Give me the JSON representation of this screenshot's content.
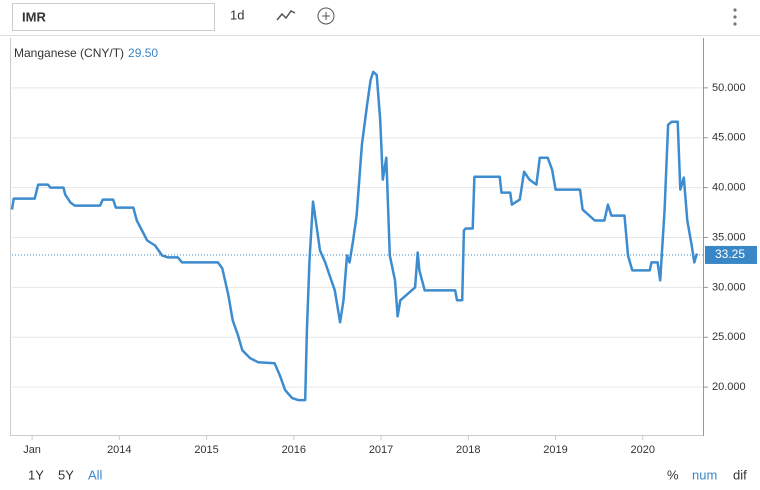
{
  "ui": {
    "symbol": "IMR",
    "interval": "1d",
    "ranges": [
      "1Y",
      "5Y",
      "All"
    ],
    "modes": [
      "%",
      "num",
      "dif"
    ]
  },
  "chart_data": {
    "type": "line",
    "title": "Manganese (CNY/T)",
    "title_value": "29.50",
    "color": "#3d8ccf",
    "grid": true,
    "last_value": 33.25,
    "xlim": [
      2012.77,
      2020.69
    ],
    "xticks": [
      {
        "value": 2013,
        "label": "Jan"
      },
      2014,
      2015,
      2016,
      2017,
      2018,
      2019,
      2020
    ],
    "ylim": [
      15.2,
      55
    ],
    "yticks": [
      {
        "value": 20,
        "label": "20.000"
      },
      {
        "value": 25,
        "label": "25.000"
      },
      {
        "value": 30,
        "label": "30.000"
      },
      {
        "value": 35,
        "label": "35.000"
      },
      {
        "value": 40,
        "label": "40.000"
      },
      {
        "value": 45,
        "label": "45.000"
      },
      {
        "value": 50,
        "label": "50.000"
      }
    ],
    "x": [
      2012.77,
      2012.79,
      2013.03,
      2013.07,
      2013.18,
      2013.21,
      2013.36,
      2013.38,
      2013.44,
      2013.49,
      2013.78,
      2013.81,
      2013.93,
      2013.96,
      2014.16,
      2014.2,
      2014.26,
      2014.32,
      2014.41,
      2014.49,
      2014.56,
      2014.67,
      2014.72,
      2015.13,
      2015.18,
      2015.25,
      2015.3,
      2015.36,
      2015.41,
      2015.5,
      2015.59,
      2015.78,
      2015.84,
      2015.9,
      2015.98,
      2016.05,
      2016.13,
      2016.15,
      2016.18,
      2016.22,
      2016.25,
      2016.3,
      2016.36,
      2016.41,
      2016.47,
      2016.53,
      2016.57,
      2016.61,
      2016.64,
      2016.68,
      2016.72,
      2016.78,
      2016.84,
      2016.88,
      2016.91,
      2016.95,
      2016.99,
      2017.02,
      2017.06,
      2017.1,
      2017.16,
      2017.19,
      2017.22,
      2017.39,
      2017.42,
      2017.44,
      2017.5,
      2017.85,
      2017.87,
      2017.93,
      2017.95,
      2017.97,
      2018.05,
      2018.07,
      2018.36,
      2018.38,
      2018.48,
      2018.5,
      2018.59,
      2018.64,
      2018.7,
      2018.78,
      2018.82,
      2018.91,
      2018.96,
      2019.0,
      2019.28,
      2019.31,
      2019.45,
      2019.56,
      2019.6,
      2019.64,
      2019.79,
      2019.83,
      2019.88,
      2020.08,
      2020.1,
      2020.17,
      2020.2,
      2020.25,
      2020.29,
      2020.33,
      2020.4,
      2020.43,
      2020.47,
      2020.51,
      2020.56,
      2020.59,
      2020.62
    ],
    "values": [
      37.8,
      38.9,
      38.9,
      40.3,
      40.3,
      40.0,
      40.0,
      39.3,
      38.5,
      38.2,
      38.2,
      38.8,
      38.8,
      38.0,
      38.0,
      36.7,
      35.7,
      34.7,
      34.2,
      33.2,
      33.0,
      33.0,
      32.5,
      32.5,
      31.9,
      29.2,
      26.7,
      25.2,
      23.7,
      22.9,
      22.5,
      22.4,
      21.2,
      19.7,
      18.9,
      18.7,
      18.7,
      25.7,
      32.7,
      38.6,
      36.8,
      33.7,
      32.5,
      31.2,
      29.7,
      26.5,
      28.7,
      33.2,
      32.5,
      34.7,
      37.2,
      44.3,
      48.3,
      50.8,
      51.6,
      51.3,
      46.8,
      40.8,
      43.0,
      33.2,
      30.7,
      27.1,
      28.7,
      30.0,
      33.5,
      31.7,
      29.7,
      29.7,
      28.7,
      28.7,
      35.7,
      35.9,
      35.9,
      41.1,
      41.1,
      39.5,
      39.5,
      38.3,
      38.8,
      41.6,
      40.8,
      40.3,
      43.0,
      43.0,
      41.8,
      39.8,
      39.8,
      37.8,
      36.7,
      36.7,
      38.3,
      37.2,
      37.2,
      33.2,
      31.7,
      31.7,
      32.5,
      32.5,
      30.7,
      37.8,
      46.3,
      46.6,
      46.6,
      39.8,
      41.0,
      36.7,
      34.2,
      32.5,
      33.4
    ]
  }
}
